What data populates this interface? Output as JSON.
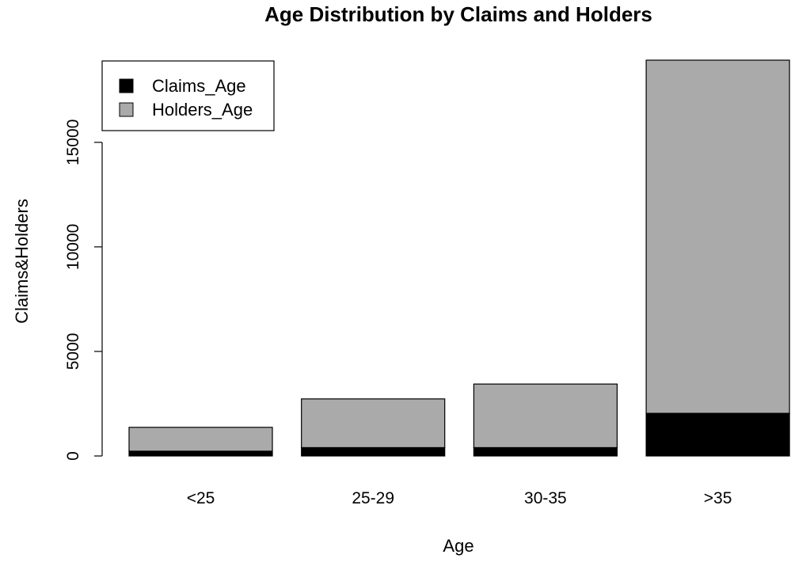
{
  "chart_data": {
    "type": "bar",
    "stacked": true,
    "title": "Age Distribution by Claims and Holders",
    "xlabel": "Age",
    "ylabel": "Claims&Holders",
    "categories": [
      "<25",
      "25-29",
      "30-35",
      ">35"
    ],
    "series": [
      {
        "name": "Claims_Age",
        "values": [
          230,
          400,
          400,
          2040
        ],
        "color": "#000000"
      },
      {
        "name": "Holders_Age",
        "values": [
          1140,
          2330,
          3040,
          16890
        ],
        "color": "#aaaaaa"
      }
    ],
    "ylim": [
      0,
      18930
    ],
    "yticks": [
      0,
      5000,
      10000,
      15000
    ],
    "ytick_labels": [
      "0",
      "5000",
      "10000",
      "15000"
    ],
    "grid": false,
    "legend_position": "top-left"
  }
}
